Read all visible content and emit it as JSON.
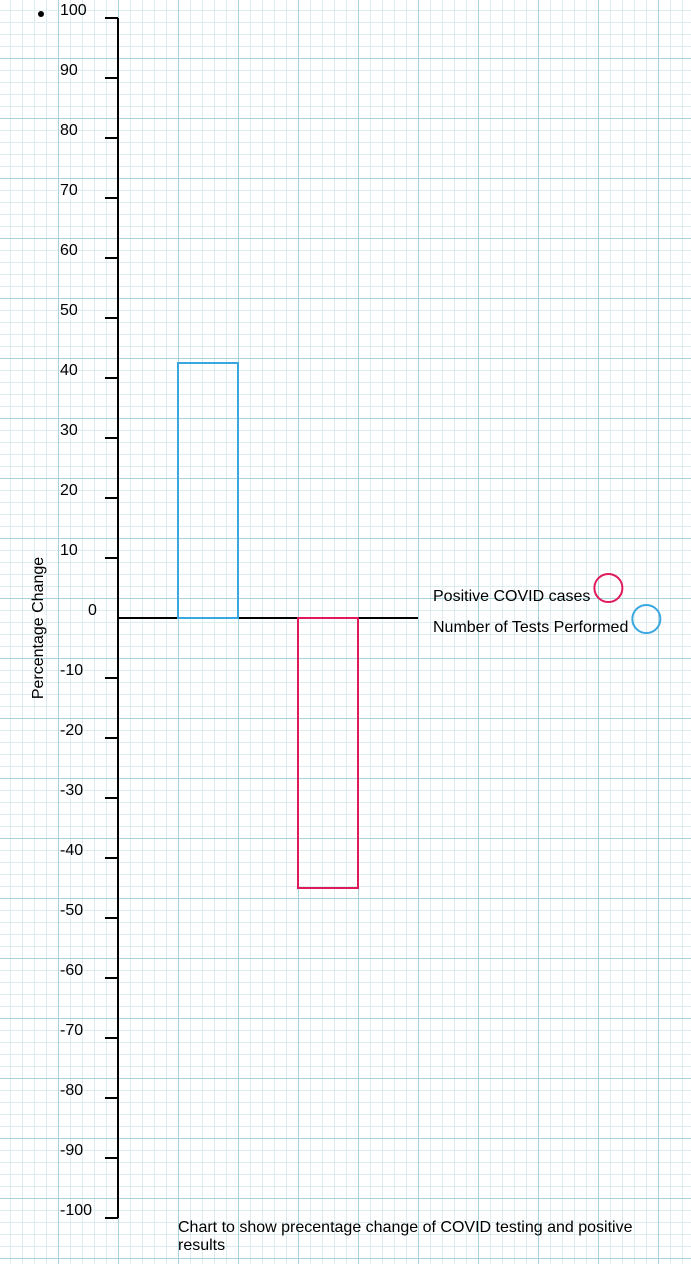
{
  "chart_data": {
    "type": "bar",
    "ylabel": "Percentage Change",
    "ylim": [
      -100,
      100
    ],
    "yticks": [
      100,
      90,
      80,
      70,
      60,
      50,
      40,
      30,
      20,
      10,
      0,
      -10,
      -20,
      -30,
      -40,
      -50,
      -60,
      -70,
      -80,
      -90,
      -100
    ],
    "series": [
      {
        "name": "Number of Tests Performed",
        "values": [
          42.5
        ],
        "color": "#3aa8e0"
      },
      {
        "name": "Positive COVID cases",
        "values": [
          -45
        ],
        "color": "#e0195a"
      }
    ],
    "legend": {
      "placement": "right",
      "items": [
        {
          "label": "Positive COVID cases",
          "color": "#e0195a",
          "marker": "circle"
        },
        {
          "label": "Number of Tests Performed",
          "color": "#3aa8e0",
          "marker": "circle"
        }
      ]
    },
    "caption": "Chart to show precentage change of COVID testing and positive results",
    "grid": true
  }
}
